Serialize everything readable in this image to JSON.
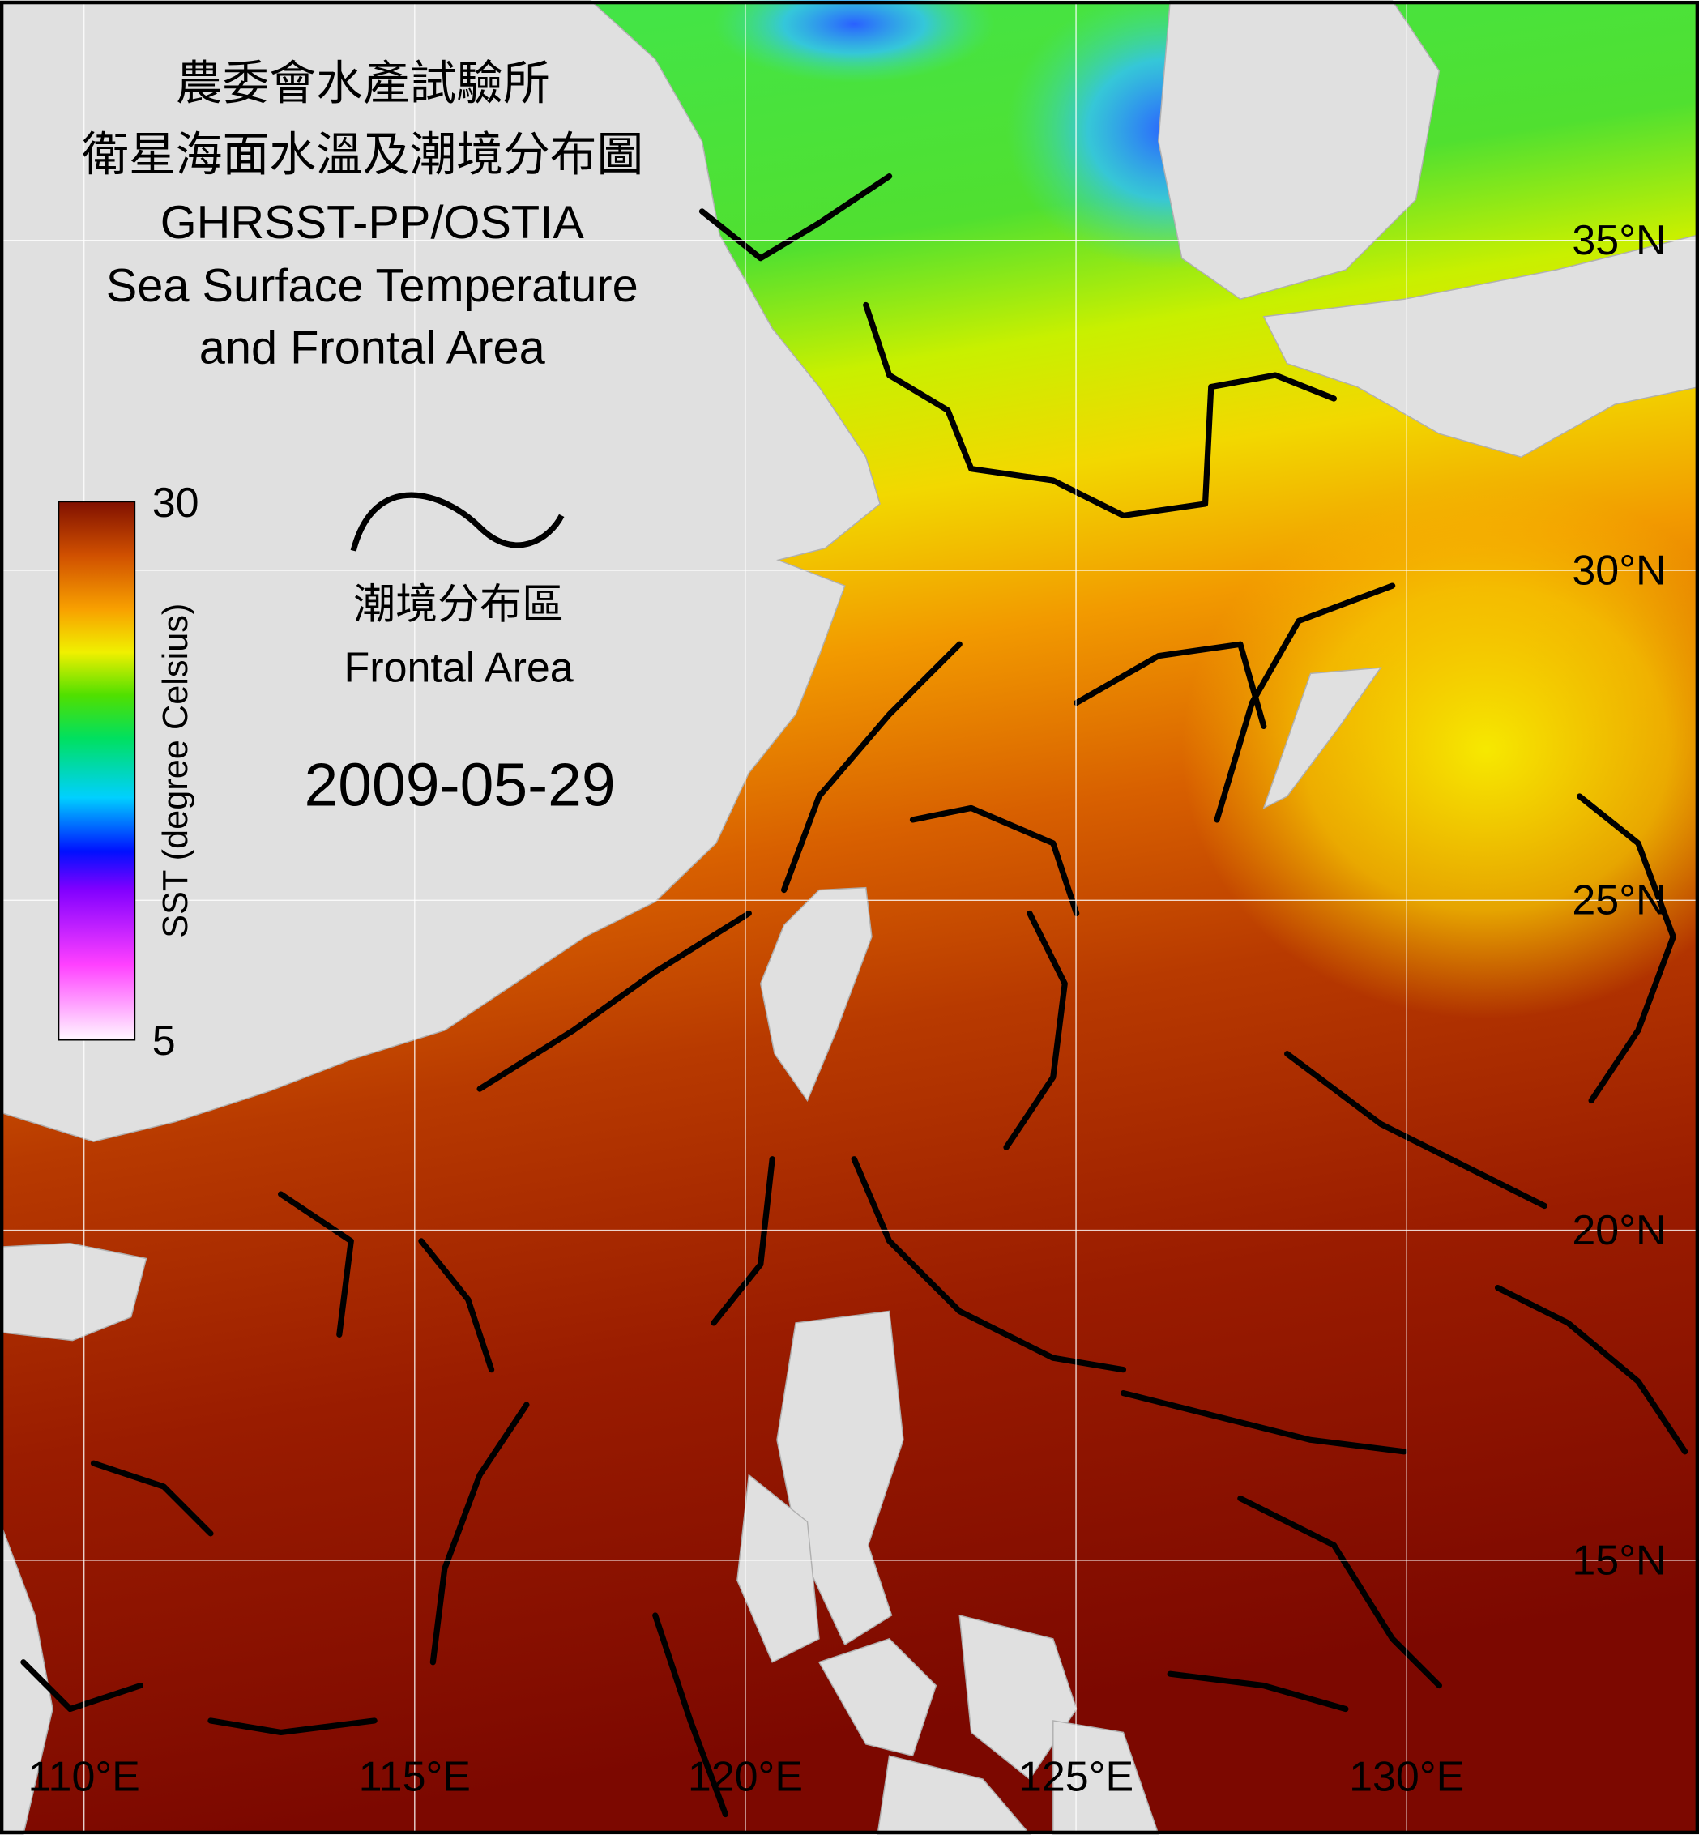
{
  "map": {
    "title_lines": [
      "農委會水產試驗所",
      "衛星海面水溫及潮境分布圖",
      "GHRSST-PP/OSTIA",
      "Sea Surface Temperature",
      "and Frontal Area"
    ],
    "legend": {
      "label_zh": "潮境分布區",
      "label_en": "Frontal Area"
    },
    "date": "2009-05-29",
    "colorbar": {
      "label": "SST (degree Celsius)",
      "range": [
        5,
        30
      ],
      "ticks": [
        5,
        30
      ]
    },
    "xlim": [
      108.73,
      134.42
    ],
    "ylim": [
      10.85,
      38.63
    ],
    "xticks": [
      {
        "value": 110,
        "label": "110°E"
      },
      {
        "value": 115,
        "label": "115°E"
      },
      {
        "value": 120,
        "label": "120°E"
      },
      {
        "value": 125,
        "label": "125°E"
      },
      {
        "value": 130,
        "label": "130°E"
      }
    ],
    "yticks": [
      {
        "value": 35,
        "label": "35°N"
      },
      {
        "value": 30,
        "label": "30°N"
      },
      {
        "value": 25,
        "label": "25°N"
      },
      {
        "value": 20,
        "label": "20°N"
      },
      {
        "value": 15,
        "label": "15°N"
      }
    ],
    "grid": true
  }
}
